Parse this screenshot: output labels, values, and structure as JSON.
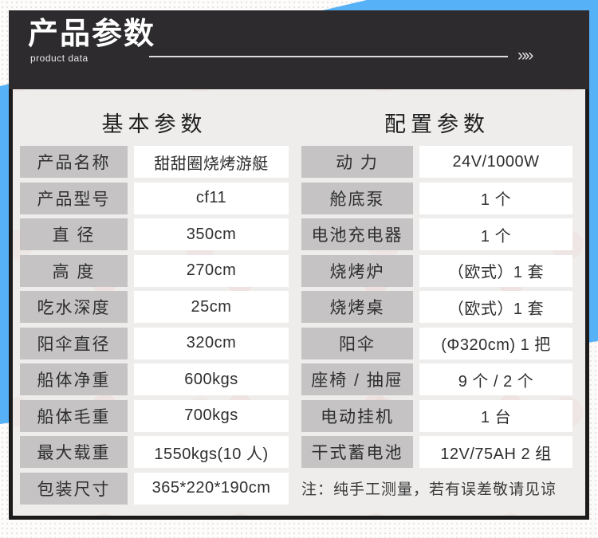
{
  "header": {
    "title": "产品参数",
    "subtitle": "product data",
    "arrows": "»»"
  },
  "sections": {
    "left": {
      "title": "基本参数",
      "rows": [
        {
          "label": "产品名称",
          "value": "甜甜圈烧烤游艇"
        },
        {
          "label": "产品型号",
          "value": "cf11"
        },
        {
          "label": "直 径",
          "value": "350cm"
        },
        {
          "label": "高 度",
          "value": "270cm"
        },
        {
          "label": "吃水深度",
          "value": "25cm"
        },
        {
          "label": "阳伞直径",
          "value": "320cm"
        },
        {
          "label": "船体净重",
          "value": "600kgs"
        },
        {
          "label": "船体毛重",
          "value": "700kgs"
        },
        {
          "label": "最大载重",
          "value": "1550kgs(10 人)"
        },
        {
          "label": "包装尺寸",
          "value": "365*220*190cm"
        }
      ]
    },
    "right": {
      "title": "配置参数",
      "rows": [
        {
          "label": "动 力",
          "value": "24V/1000W"
        },
        {
          "label": "舱底泵",
          "value": "1 个"
        },
        {
          "label": "电池充电器",
          "value": "1 个"
        },
        {
          "label": "烧烤炉",
          "value": "（欧式）1 套"
        },
        {
          "label": "烧烤桌",
          "value": "（欧式）1 套"
        },
        {
          "label": "阳伞",
          "value": "(Φ320cm) 1 把"
        },
        {
          "label": "座椅 / 抽屉",
          "value": "9 个 / 2 个"
        },
        {
          "label": "电动挂机",
          "value": "1 台"
        },
        {
          "label": "干式蓄电池",
          "value": "12V/75AH 2 组"
        }
      ],
      "note": "注：纯手工测量，若有误差敬请见谅"
    }
  },
  "colors": {
    "banner_bg": "#2d2b2e",
    "accent_blue": "#57b1f6",
    "frame_border": "#1b1b1b",
    "content_bg": "#efedec",
    "label_cell_bg": "#c5c3c3",
    "value_cell_bg": "#ffffff",
    "header_text": "#ffffff"
  }
}
